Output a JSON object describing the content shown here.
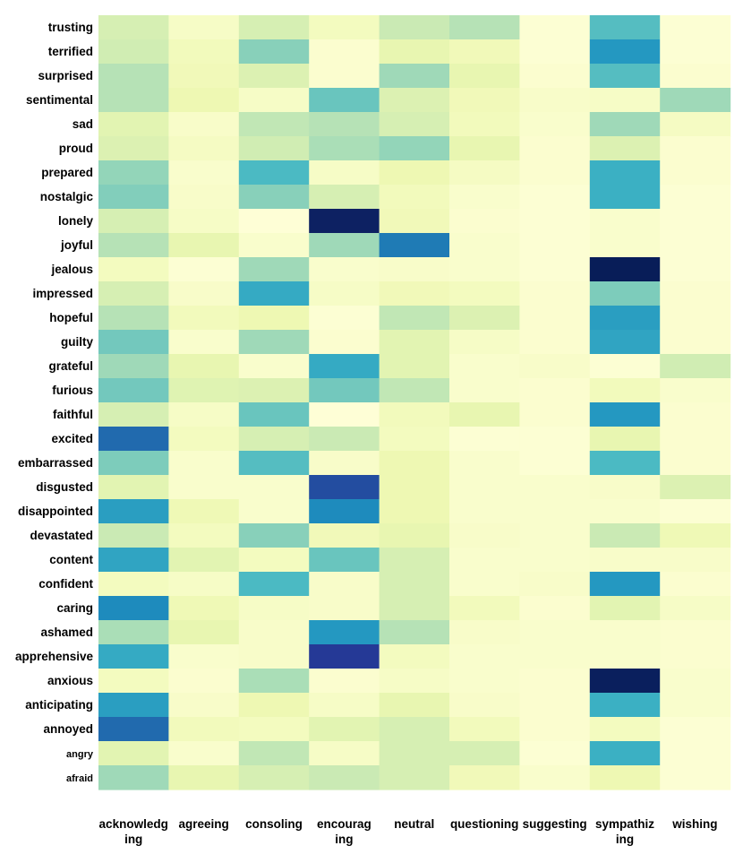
{
  "chart_data": {
    "type": "heatmap",
    "colormap": "YlGnBu",
    "value_range": [
      0,
      1
    ],
    "rows": [
      "trusting",
      "terrified",
      "surprised",
      "sentimental",
      "sad",
      "proud",
      "prepared",
      "nostalgic",
      "lonely",
      "joyful",
      "jealous",
      "impressed",
      "hopeful",
      "guilty",
      "grateful",
      "furious",
      "faithful",
      "excited",
      "embarrassed",
      "disgusted",
      "disappointed",
      "devastated",
      "content",
      "confident",
      "caring",
      "ashamed",
      "apprehensive",
      "anxious",
      "anticipating",
      "annoyed",
      "angry",
      "afraid"
    ],
    "columns": [
      {
        "label": "acknowledging",
        "lines": [
          "acknowledg",
          "ing"
        ]
      },
      {
        "label": "agreeing",
        "lines": [
          "agreeing"
        ]
      },
      {
        "label": "consoling",
        "lines": [
          "consoling"
        ]
      },
      {
        "label": "encouraging",
        "lines": [
          "encourag",
          "ing"
        ]
      },
      {
        "label": "neutral",
        "lines": [
          "neutral"
        ]
      },
      {
        "label": "questioning",
        "lines": [
          "questioning"
        ]
      },
      {
        "label": "suggesting",
        "lines": [
          "suggesting"
        ]
      },
      {
        "label": "sympathizing",
        "lines": [
          "sympathiz",
          "ing"
        ]
      },
      {
        "label": "wishing",
        "lines": [
          "wishing"
        ]
      }
    ],
    "values": [
      [
        0.2,
        0.06,
        0.2,
        0.08,
        0.24,
        0.28,
        0.02,
        0.46,
        0.02
      ],
      [
        0.22,
        0.09,
        0.36,
        0.03,
        0.14,
        0.1,
        0.02,
        0.6,
        0.02
      ],
      [
        0.28,
        0.1,
        0.18,
        0.03,
        0.32,
        0.14,
        0.03,
        0.46,
        0.03
      ],
      [
        0.28,
        0.12,
        0.06,
        0.42,
        0.18,
        0.1,
        0.05,
        0.06,
        0.32
      ],
      [
        0.16,
        0.05,
        0.26,
        0.28,
        0.2,
        0.09,
        0.04,
        0.32,
        0.07
      ],
      [
        0.18,
        0.07,
        0.22,
        0.3,
        0.34,
        0.14,
        0.03,
        0.18,
        0.03
      ],
      [
        0.34,
        0.04,
        0.48,
        0.06,
        0.12,
        0.07,
        0.03,
        0.52,
        0.03
      ],
      [
        0.37,
        0.05,
        0.36,
        0.2,
        0.09,
        0.04,
        0.02,
        0.52,
        0.02
      ],
      [
        0.2,
        0.06,
        0.01,
        0.98,
        0.1,
        0.03,
        0.02,
        0.04,
        0.02
      ],
      [
        0.28,
        0.14,
        0.04,
        0.32,
        0.68,
        0.04,
        0.02,
        0.04,
        0.02
      ],
      [
        0.08,
        0.02,
        0.32,
        0.04,
        0.05,
        0.04,
        0.02,
        1.0,
        0.02
      ],
      [
        0.2,
        0.05,
        0.54,
        0.06,
        0.1,
        0.08,
        0.03,
        0.38,
        0.03
      ],
      [
        0.28,
        0.09,
        0.12,
        0.02,
        0.26,
        0.18,
        0.03,
        0.58,
        0.03
      ],
      [
        0.4,
        0.04,
        0.32,
        0.03,
        0.16,
        0.06,
        0.03,
        0.56,
        0.03
      ],
      [
        0.32,
        0.14,
        0.04,
        0.54,
        0.16,
        0.04,
        0.05,
        0.02,
        0.22
      ],
      [
        0.4,
        0.17,
        0.18,
        0.4,
        0.26,
        0.04,
        0.03,
        0.09,
        0.04
      ],
      [
        0.2,
        0.06,
        0.42,
        0.01,
        0.09,
        0.14,
        0.03,
        0.6,
        0.03
      ],
      [
        0.72,
        0.08,
        0.2,
        0.24,
        0.08,
        0.02,
        0.02,
        0.14,
        0.03
      ],
      [
        0.38,
        0.04,
        0.46,
        0.05,
        0.12,
        0.04,
        0.02,
        0.48,
        0.03
      ],
      [
        0.16,
        0.04,
        0.04,
        0.8,
        0.12,
        0.04,
        0.04,
        0.05,
        0.18
      ],
      [
        0.58,
        0.11,
        0.04,
        0.64,
        0.12,
        0.04,
        0.04,
        0.04,
        0.02
      ],
      [
        0.24,
        0.08,
        0.36,
        0.1,
        0.14,
        0.05,
        0.04,
        0.24,
        0.11
      ],
      [
        0.56,
        0.16,
        0.08,
        0.42,
        0.2,
        0.04,
        0.04,
        0.05,
        0.05
      ],
      [
        0.08,
        0.06,
        0.48,
        0.05,
        0.2,
        0.04,
        0.05,
        0.6,
        0.03
      ],
      [
        0.64,
        0.11,
        0.06,
        0.05,
        0.2,
        0.09,
        0.03,
        0.16,
        0.06
      ],
      [
        0.3,
        0.14,
        0.05,
        0.6,
        0.28,
        0.05,
        0.04,
        0.04,
        0.03
      ],
      [
        0.54,
        0.04,
        0.05,
        0.86,
        0.08,
        0.04,
        0.04,
        0.04,
        0.03
      ],
      [
        0.08,
        0.03,
        0.3,
        0.03,
        0.06,
        0.04,
        0.03,
        0.99,
        0.04
      ],
      [
        0.58,
        0.05,
        0.12,
        0.06,
        0.14,
        0.05,
        0.03,
        0.52,
        0.04
      ],
      [
        0.72,
        0.09,
        0.08,
        0.16,
        0.2,
        0.09,
        0.03,
        0.08,
        0.02
      ],
      [
        0.16,
        0.04,
        0.26,
        0.06,
        0.2,
        0.2,
        0.02,
        0.52,
        0.02
      ],
      [
        0.32,
        0.14,
        0.2,
        0.24,
        0.2,
        0.1,
        0.04,
        0.12,
        0.02
      ]
    ]
  }
}
